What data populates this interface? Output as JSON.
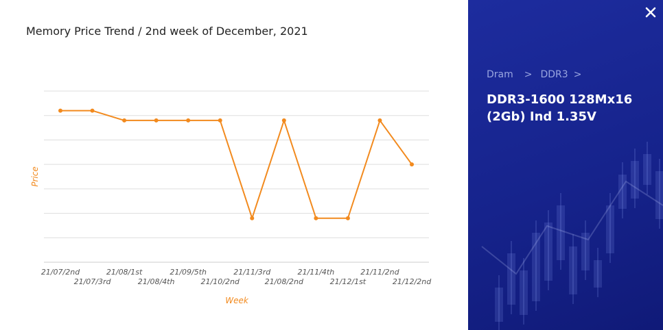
{
  "chart_data": {
    "type": "line",
    "title": "Memory Price Trend / 2nd week of December, 2021",
    "xlabel": "Week",
    "ylabel": "Price",
    "categories": [
      "21/07/2nd",
      "21/07/3rd",
      "21/08/1st",
      "21/08/4th",
      "21/09/5th",
      "21/10/2nd",
      "21/11/3rd",
      "21/08/2nd",
      "21/11/4th",
      "21/12/1st",
      "21/11/2nd",
      "21/12/2nd"
    ],
    "values": [
      6.2,
      6.2,
      5.8,
      5.8,
      5.8,
      5.8,
      1.8,
      5.8,
      1.8,
      1.8,
      5.8,
      4.0
    ],
    "ylim": [
      0,
      7
    ],
    "y_tick_labels_shown": false,
    "grid": "horizontal",
    "legend": "none",
    "color": "#f28a1e"
  },
  "panel": {
    "breadcrumb": [
      "Dram",
      "DDR3"
    ],
    "breadcrumb_separator": ">",
    "product_title": "DDR3-1600 128Mx16 (2Gb) Ind 1.35V",
    "close_icon": "×"
  },
  "colors": {
    "line": "#f28a1e",
    "panel_bg": "#16238c",
    "grid": "#dddddd"
  }
}
